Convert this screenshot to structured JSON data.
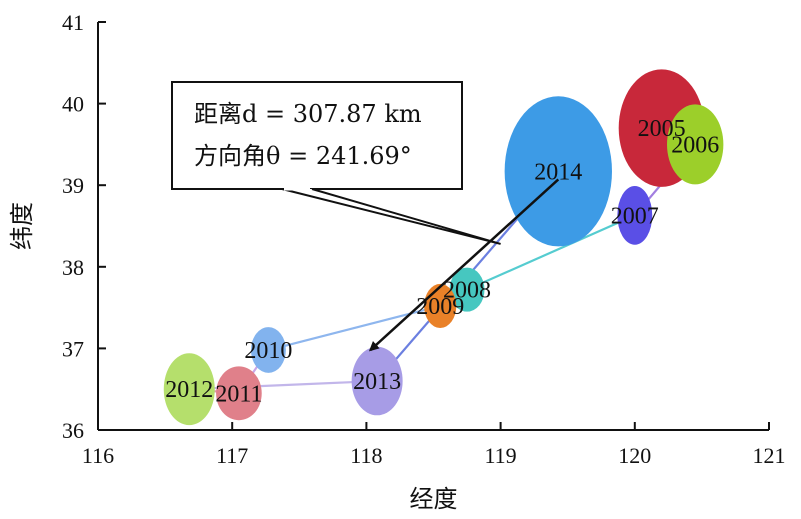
{
  "chart_data": {
    "type": "scatter",
    "xlabel": "经度",
    "ylabel": "纬度",
    "xlim": [
      116,
      121
    ],
    "ylim": [
      36,
      41
    ],
    "xticks": [
      "116",
      "117",
      "118",
      "119",
      "120",
      "121"
    ],
    "yticks": [
      "36",
      "37",
      "38",
      "39",
      "40",
      "41"
    ],
    "points": [
      {
        "label": "2005",
        "x": 120.2,
        "y": 39.7,
        "rx": 0.32,
        "ry": 0.72,
        "color": "#c8283a"
      },
      {
        "label": "2006",
        "x": 120.45,
        "y": 39.5,
        "rx": 0.21,
        "ry": 0.49,
        "color": "#9ccf2a"
      },
      {
        "label": "2007",
        "x": 120.0,
        "y": 38.63,
        "rx": 0.13,
        "ry": 0.36,
        "color": "#5a4fe6"
      },
      {
        "label": "2008",
        "x": 118.75,
        "y": 37.72,
        "rx": 0.13,
        "ry": 0.27,
        "color": "#46c7c0"
      },
      {
        "label": "2009",
        "x": 118.55,
        "y": 37.52,
        "rx": 0.12,
        "ry": 0.27,
        "color": "#e98128"
      },
      {
        "label": "2010",
        "x": 117.27,
        "y": 36.98,
        "rx": 0.13,
        "ry": 0.28,
        "color": "#82b3ee"
      },
      {
        "label": "2011",
        "x": 117.05,
        "y": 36.45,
        "rx": 0.17,
        "ry": 0.33,
        "color": "#e0808a"
      },
      {
        "label": "2012",
        "x": 116.68,
        "y": 36.5,
        "rx": 0.19,
        "ry": 0.44,
        "color": "#b5df6c"
      },
      {
        "label": "2013",
        "x": 118.08,
        "y": 36.6,
        "rx": 0.19,
        "ry": 0.42,
        "color": "#a79ce6"
      },
      {
        "label": "2014",
        "x": 119.43,
        "y": 39.17,
        "rx": 0.4,
        "ry": 0.92,
        "color": "#3d9be6"
      }
    ],
    "trajectory": [
      {
        "from": "2005",
        "to": "2006",
        "color": "#d4589a"
      },
      {
        "from": "2006",
        "to": "2007",
        "color": "#a27ee0"
      },
      {
        "from": "2007",
        "to": "2008",
        "color": "#55ccd0"
      },
      {
        "from": "2008",
        "to": "2009",
        "color": "#88a8e0"
      },
      {
        "from": "2009",
        "to": "2010",
        "color": "#8eb6ee"
      },
      {
        "from": "2010",
        "to": "2011",
        "color": "#c9a6e8"
      },
      {
        "from": "2011",
        "to": "2012",
        "color": "#e09aa6"
      },
      {
        "from": "2012",
        "to": "2013",
        "color": "#c2b6ea"
      },
      {
        "from": "2013",
        "to": "2014",
        "color": "#6b7fe0"
      }
    ],
    "arrow": {
      "from": {
        "x": 119.43,
        "y": 39.07
      },
      "to": {
        "x": 118.03,
        "y": 36.98
      }
    },
    "annotation": {
      "line1": "距离d = 307.87 km",
      "line2": "方向角θ = 241.69°",
      "pointer_to": {
        "x": 119.0,
        "y": 38.28
      }
    }
  }
}
